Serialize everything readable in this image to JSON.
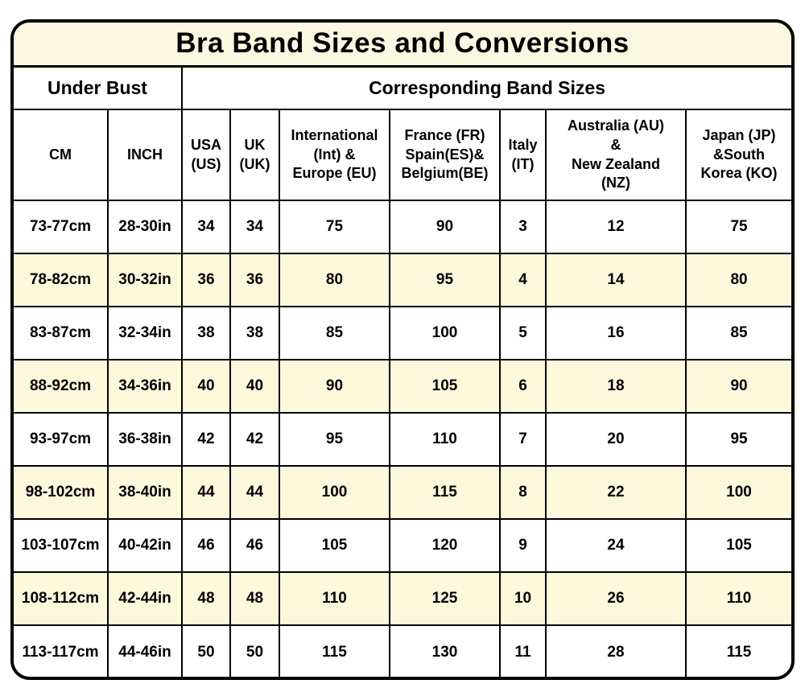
{
  "chart_data": {
    "type": "table",
    "title": "Bra Band Sizes and Conversions",
    "group_headers": [
      {
        "label": "Under Bust",
        "span": 2
      },
      {
        "label": "Corresponding Band Sizes",
        "span": 7
      }
    ],
    "columns": [
      "CM",
      "INCH",
      "USA\n(US)",
      "UK\n(UK)",
      "International\n(Int) &\nEurope (EU)",
      "France (FR)\nSpain(ES)&\nBelgium(BE)",
      "Italy\n(IT)",
      "Australia (AU)\n&\nNew Zealand\n(NZ)",
      "Japan (JP)\n&South\nKorea (KO)"
    ],
    "rows": [
      [
        "73-77cm",
        "28-30in",
        "34",
        "34",
        "75",
        "90",
        "3",
        "12",
        "75"
      ],
      [
        "78-82cm",
        "30-32in",
        "36",
        "36",
        "80",
        "95",
        "4",
        "14",
        "80"
      ],
      [
        "83-87cm",
        "32-34in",
        "38",
        "38",
        "85",
        "100",
        "5",
        "16",
        "85"
      ],
      [
        "88-92cm",
        "34-36in",
        "40",
        "40",
        "90",
        "105",
        "6",
        "18",
        "90"
      ],
      [
        "93-97cm",
        "36-38in",
        "42",
        "42",
        "95",
        "110",
        "7",
        "20",
        "95"
      ],
      [
        "98-102cm",
        "38-40in",
        "44",
        "44",
        "100",
        "115",
        "8",
        "22",
        "100"
      ],
      [
        "103-107cm",
        "40-42in",
        "46",
        "46",
        "105",
        "120",
        "9",
        "24",
        "105"
      ],
      [
        "108-112cm",
        "42-44in",
        "48",
        "48",
        "110",
        "125",
        "10",
        "26",
        "110"
      ],
      [
        "113-117cm",
        "44-46in",
        "50",
        "50",
        "115",
        "130",
        "11",
        "28",
        "115"
      ]
    ],
    "striped_row_indices": [
      1,
      3,
      5,
      7
    ],
    "layout_hints": {
      "grid": true,
      "legend_position": "none"
    },
    "colors": {
      "title_background": "#FBF8E1",
      "stripe_background": "#FCF8DC",
      "row_background": "#FFFFFF",
      "border": "#000000",
      "text": "#000000"
    }
  }
}
